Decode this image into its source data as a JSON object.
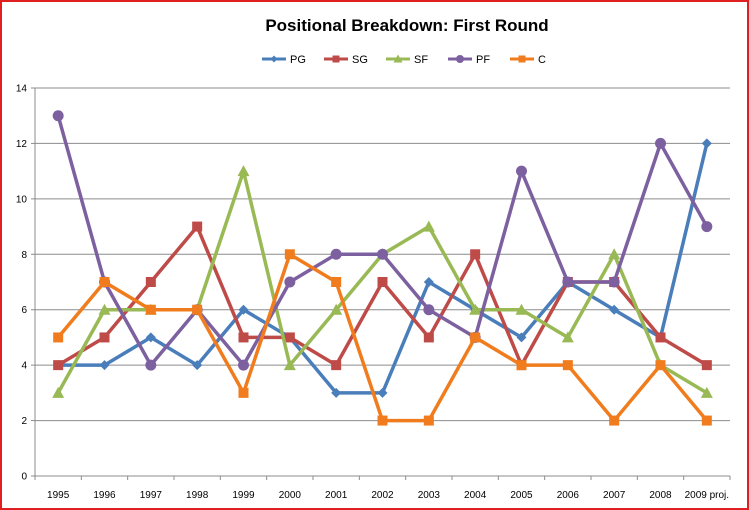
{
  "chart_data": {
    "type": "line",
    "title": "Positional Breakdown:  First Round",
    "xlabel": "",
    "ylabel": "",
    "categories": [
      "1995",
      "1996",
      "1997",
      "1998",
      "1999",
      "2000",
      "2001",
      "2002",
      "2003",
      "2004",
      "2005",
      "2006",
      "2007",
      "2008",
      "2009 proj."
    ],
    "ylim": [
      0,
      14
    ],
    "yticks": [
      0,
      2,
      4,
      6,
      8,
      10,
      12,
      14
    ],
    "grid": true,
    "legend": "top",
    "series": [
      {
        "name": "PG",
        "color": "#4a7ebb",
        "marker": "diamond",
        "values": [
          4,
          4,
          5,
          4,
          6,
          5,
          3,
          3,
          7,
          6,
          5,
          7,
          6,
          5,
          12
        ]
      },
      {
        "name": "SG",
        "color": "#be4b48",
        "marker": "square",
        "values": [
          4,
          5,
          7,
          9,
          5,
          5,
          4,
          7,
          5,
          8,
          4,
          7,
          7,
          5,
          4
        ]
      },
      {
        "name": "SF",
        "color": "#98b954",
        "marker": "triangle",
        "values": [
          3,
          6,
          6,
          6,
          11,
          4,
          6,
          8,
          9,
          6,
          6,
          5,
          8,
          4,
          3
        ]
      },
      {
        "name": "PF",
        "color": "#7d60a0",
        "marker": "circle",
        "values": [
          13,
          7,
          4,
          6,
          4,
          7,
          8,
          8,
          6,
          5,
          11,
          7,
          7,
          12,
          9
        ]
      },
      {
        "name": "C",
        "color": "#f07c1e",
        "marker": "square",
        "values": [
          5,
          7,
          6,
          6,
          3,
          8,
          7,
          2,
          2,
          5,
          4,
          4,
          2,
          4,
          2
        ]
      }
    ]
  }
}
